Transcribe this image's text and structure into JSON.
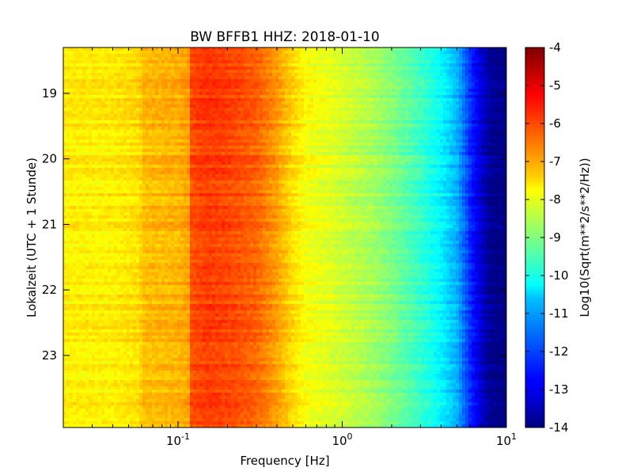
{
  "chart_data": {
    "type": "heatmap",
    "title": "BW BFFB1 HHZ: 2018-01-10",
    "xlabel": "Frequency [Hz]",
    "ylabel": "Lokalzeit (UTC + 1 Stunde)",
    "x_scale": "log",
    "xlim": [
      0.02,
      10
    ],
    "x_ticks": [
      {
        "value": 0.1,
        "base": "10",
        "exp": "-1"
      },
      {
        "value": 1,
        "base": "10",
        "exp": "0"
      },
      {
        "value": 10,
        "base": "10",
        "exp": "1"
      }
    ],
    "ylim": [
      18.3,
      24.1
    ],
    "y_inverted": true,
    "y_ticks": [
      "19",
      "20",
      "21",
      "22",
      "23"
    ],
    "colorbar": {
      "label": "Log10(Sqrt(m**2/s**2/Hz))",
      "colormap": "jet",
      "range": [
        -14,
        -4
      ],
      "ticks": [
        "-4",
        "-5",
        "-6",
        "-7",
        "-8",
        "-9",
        "-10",
        "-11",
        "-12",
        "-13",
        "-14"
      ]
    },
    "spectrum_profile": {
      "frequency_hz": [
        0.02,
        0.04,
        0.059,
        0.06,
        0.1,
        0.118,
        0.12,
        0.15,
        0.2,
        0.3,
        0.4,
        0.5,
        0.6,
        0.8,
        1.0,
        1.5,
        2.0,
        3.0,
        4.0,
        5.0,
        6.0,
        7.0,
        8.0,
        10.0
      ],
      "log10_psd": [
        -7.6,
        -7.6,
        -7.4,
        -7.1,
        -7.0,
        -6.8,
        -6.0,
        -5.8,
        -5.9,
        -6.2,
        -6.8,
        -7.4,
        -7.8,
        -8.0,
        -8.2,
        -8.6,
        -9.0,
        -9.7,
        -10.3,
        -11.0,
        -12.3,
        -13.2,
        -13.8,
        -14.0
      ]
    },
    "time_rows": 120
  }
}
